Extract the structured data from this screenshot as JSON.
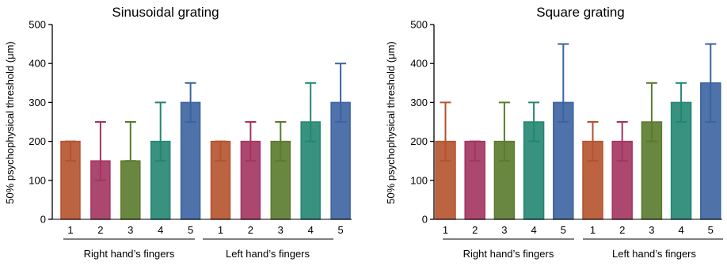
{
  "chart_data": [
    {
      "type": "bar",
      "title": "Sinusoidal grating",
      "ylabel": "50% psychophysical threshold (μm)",
      "ylim": [
        0,
        500
      ],
      "yticks": [
        "0",
        "100",
        "200",
        "300",
        "400",
        "500"
      ],
      "categories": [
        "1",
        "2",
        "3",
        "4",
        "5",
        "1",
        "2",
        "3",
        "4",
        "5"
      ],
      "groups": [
        {
          "label": "Right hand’s fingers",
          "categories": [
            "1",
            "2",
            "3",
            "4",
            "5"
          ]
        },
        {
          "label": "Left hand’s fingers",
          "categories": [
            "1",
            "2",
            "3",
            "4",
            "5"
          ]
        }
      ],
      "values": [
        200,
        150,
        150,
        200,
        300,
        200,
        200,
        200,
        250,
        300
      ],
      "error_low": [
        150,
        100,
        150,
        150,
        250,
        150,
        150,
        150,
        200,
        250
      ],
      "error_high": [
        200,
        250,
        250,
        300,
        350,
        200,
        250,
        250,
        350,
        400
      ],
      "colors": [
        "#b5522e",
        "#a33460",
        "#5a7a2c",
        "#238671",
        "#3b63a0",
        "#b5522e",
        "#a33460",
        "#5a7a2c",
        "#238671",
        "#3b63a0"
      ]
    },
    {
      "type": "bar",
      "title": "Square grating",
      "ylabel": "50% psychophysical threshold (μm)",
      "ylim": [
        0,
        500
      ],
      "yticks": [
        "0",
        "100",
        "200",
        "300",
        "400",
        "500"
      ],
      "categories": [
        "1",
        "2",
        "3",
        "4",
        "5",
        "1",
        "2",
        "3",
        "4",
        "5"
      ],
      "groups": [
        {
          "label": "Right hand’s fingers",
          "categories": [
            "1",
            "2",
            "3",
            "4",
            "5"
          ]
        },
        {
          "label": "Left hand’s fingers",
          "categories": [
            "1",
            "2",
            "3",
            "4",
            "5"
          ]
        }
      ],
      "values": [
        200,
        200,
        200,
        250,
        300,
        200,
        200,
        250,
        300,
        350
      ],
      "error_low": [
        150,
        150,
        150,
        200,
        250,
        150,
        150,
        200,
        250,
        250
      ],
      "error_high": [
        300,
        200,
        300,
        300,
        450,
        250,
        250,
        350,
        350,
        450
      ],
      "colors": [
        "#b5522e",
        "#a33460",
        "#5a7a2c",
        "#238671",
        "#3b63a0",
        "#b5522e",
        "#a33460",
        "#5a7a2c",
        "#238671",
        "#3b63a0"
      ]
    }
  ]
}
